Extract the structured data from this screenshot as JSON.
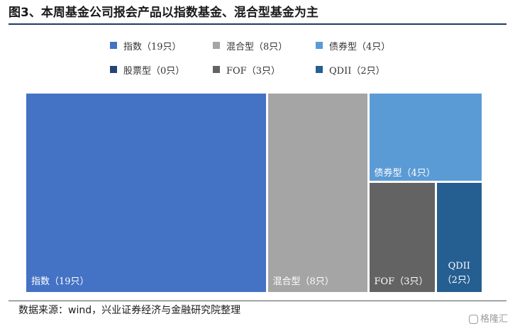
{
  "header": {
    "title": "图3、本周基金公司报会产品以指数基金、混合型基金为主"
  },
  "footer": {
    "source": "数据来源：wind，兴业证券经济与金融研究院整理"
  },
  "watermark": {
    "text": "格隆汇"
  },
  "chart_data": {
    "type": "treemap",
    "title": "",
    "legend_placement": "top",
    "series": [
      {
        "name": "指数（19只）",
        "value": 19,
        "color": "#4472c4",
        "tile_label": "指数（19只）"
      },
      {
        "name": "混合型（8只）",
        "value": 8,
        "color": "#a5a5a5",
        "tile_label": "混合型（8只）"
      },
      {
        "name": "债券型（4只）",
        "value": 4,
        "color": "#5b9bd5",
        "tile_label": "债券型（4只）"
      },
      {
        "name": "股票型（0只）",
        "value": 0,
        "color": "#264478",
        "tile_label": ""
      },
      {
        "name": "FOF（3只）",
        "value": 3,
        "color": "#636363",
        "tile_label": "FOF（3只）"
      },
      {
        "name": "QDII（2只）",
        "value": 2,
        "color": "#255e91",
        "tile_label": [
          "QDII",
          "（2只）"
        ]
      }
    ]
  }
}
